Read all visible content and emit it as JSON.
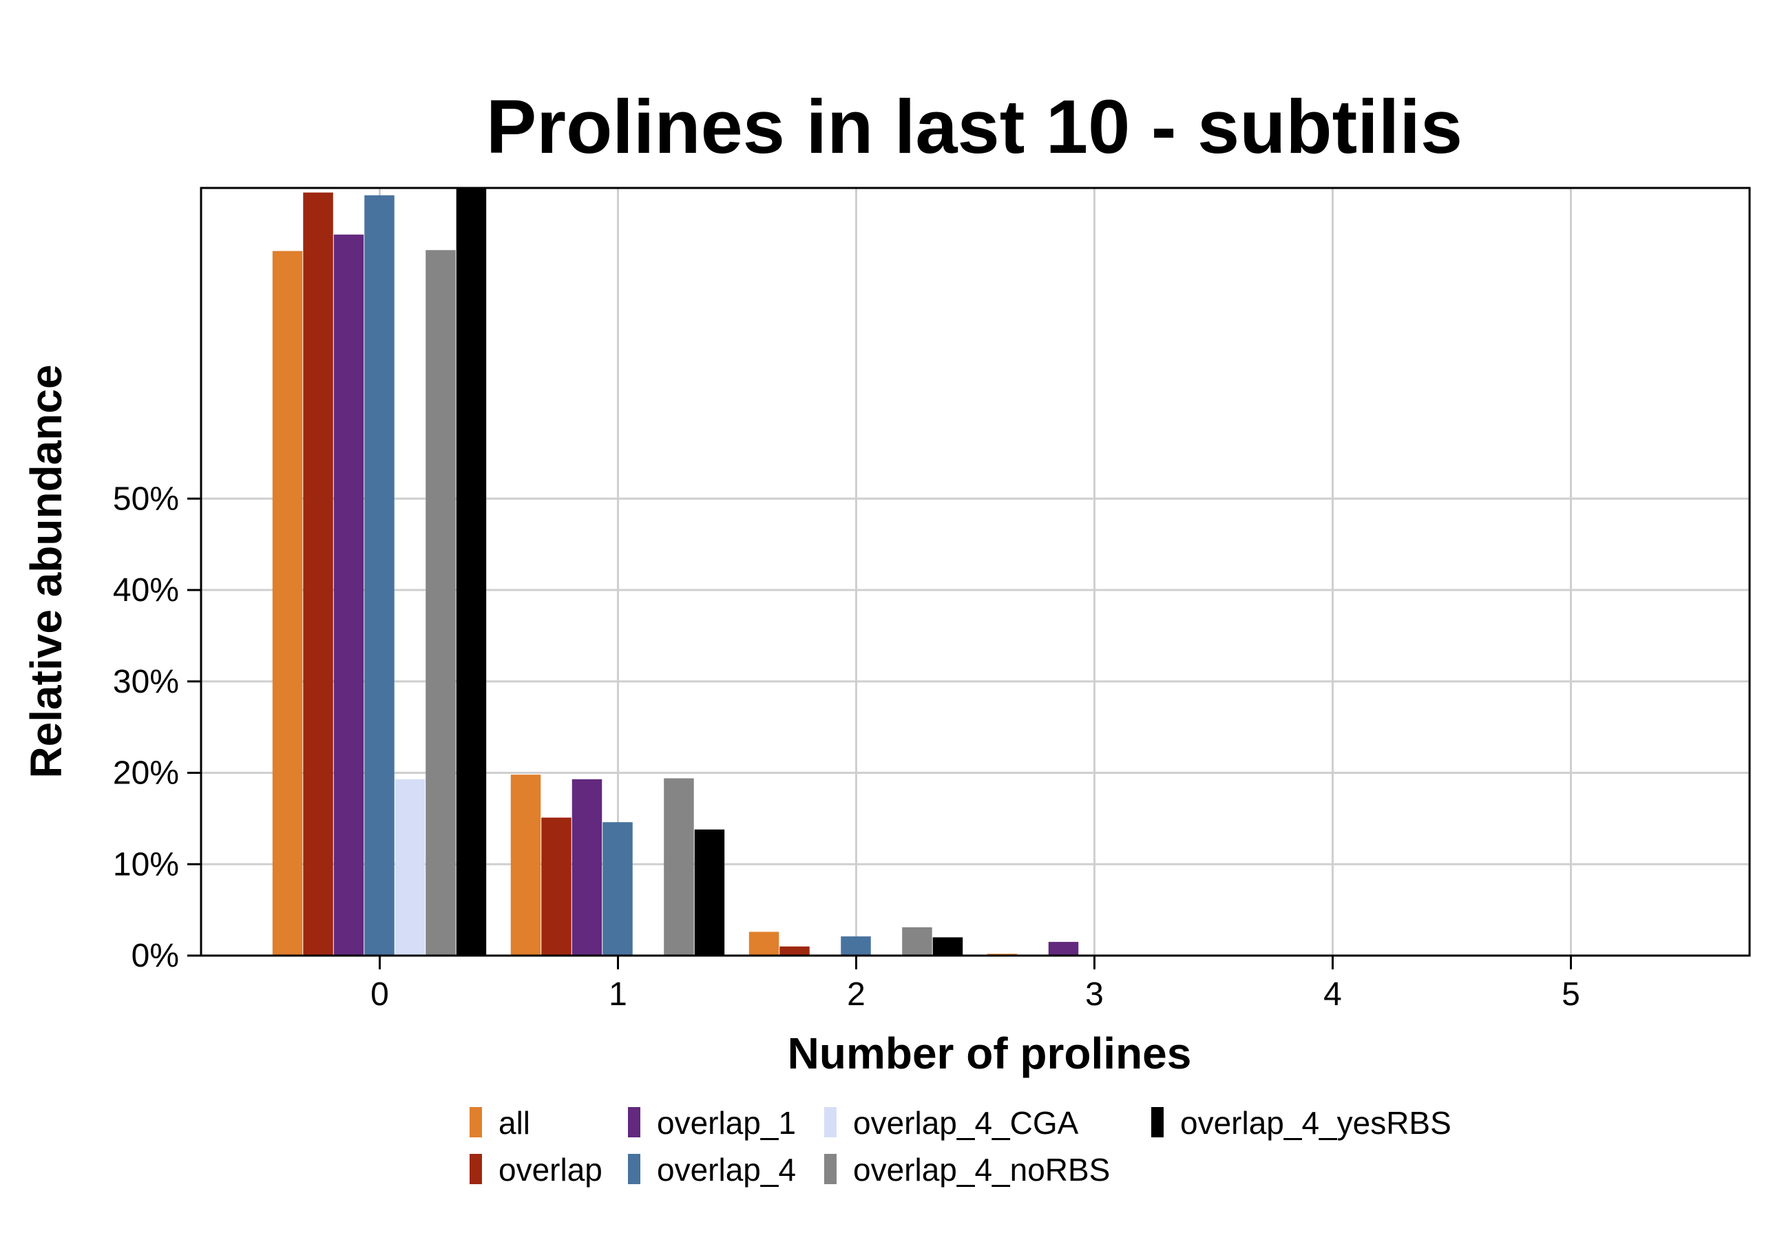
{
  "chart_data": {
    "type": "bar",
    "title": "Prolines in last 10 - subtilis",
    "xlabel": "Number of prolines",
    "ylabel": "Relative abundance",
    "categories": [
      "0",
      "1",
      "2",
      "3",
      "4",
      "5"
    ],
    "y_ticks": [
      "0%",
      "10%",
      "20%",
      "30%",
      "40%",
      "50%"
    ],
    "y_tick_values": [
      0,
      10,
      20,
      30,
      40,
      50
    ],
    "ylim": [
      0,
      84
    ],
    "xlim": [
      -0.75,
      5.75
    ],
    "grid": true,
    "legend_position": "bottom",
    "series": [
      {
        "name": "all",
        "color": "#E07F2C",
        "values": [
          77.1,
          19.8,
          2.6,
          0.2,
          0,
          0
        ]
      },
      {
        "name": "overlap",
        "color": "#9E2710",
        "values": [
          83.5,
          15.1,
          1.0,
          0,
          0,
          0
        ]
      },
      {
        "name": "overlap_1",
        "color": "#62297E",
        "values": [
          78.9,
          19.3,
          0,
          1.5,
          0,
          0
        ]
      },
      {
        "name": "overlap_4",
        "color": "#48739E",
        "values": [
          83.2,
          14.6,
          2.1,
          0,
          0,
          0
        ]
      },
      {
        "name": "overlap_4_CGA",
        "color": "#D6DEF7",
        "values": [
          19.3,
          0,
          0,
          0,
          0,
          0
        ]
      },
      {
        "name": "overlap_4_noRBS",
        "color": "#858585",
        "values": [
          77.2,
          19.4,
          3.1,
          0,
          0,
          0
        ]
      },
      {
        "name": "overlap_4_yesRBS",
        "color": "#000000",
        "values": [
          84,
          13.8,
          2.0,
          0,
          0,
          0
        ]
      }
    ]
  }
}
